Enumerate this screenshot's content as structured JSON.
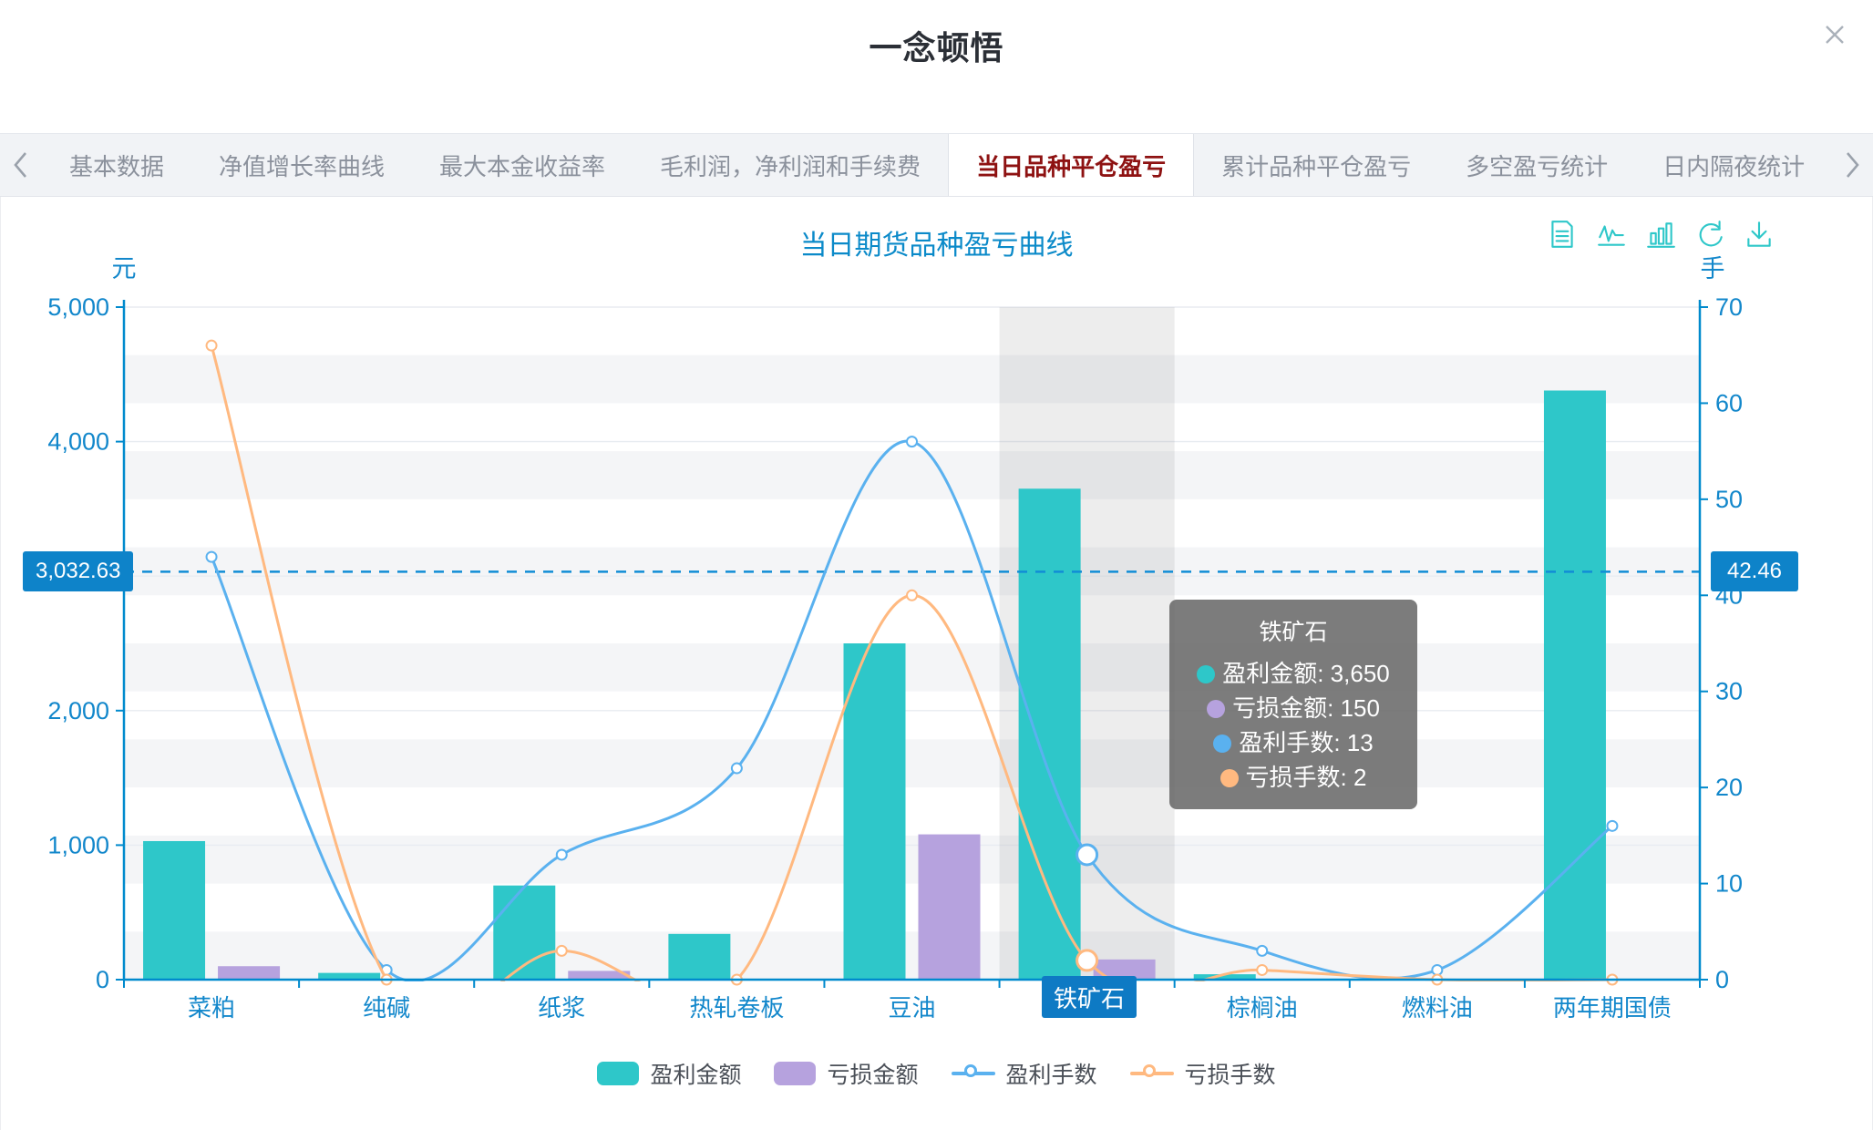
{
  "page": {
    "title": "一念顿悟"
  },
  "tabs": {
    "items": [
      {
        "label": "基本数据",
        "active": false
      },
      {
        "label": "净值增长率曲线",
        "active": false
      },
      {
        "label": "最大本金收益率",
        "active": false
      },
      {
        "label": "毛利润，净利润和手续费",
        "active": false
      },
      {
        "label": "当日品种平仓盈亏",
        "active": true
      },
      {
        "label": "累计品种平仓盈亏",
        "active": false
      },
      {
        "label": "多空盈亏统计",
        "active": false
      },
      {
        "label": "日内隔夜统计",
        "active": false
      }
    ]
  },
  "chart": {
    "title": "当日期货品种盈亏曲线",
    "toolbox_icons": [
      "data-view-icon",
      "line-chart-icon",
      "bar-chart-icon",
      "refresh-icon",
      "download-icon"
    ]
  },
  "chart_data": {
    "type": "bar+line",
    "categories": [
      "菜粕",
      "纯碱",
      "纸浆",
      "热轧卷板",
      "豆油",
      "铁矿石",
      "棕榈油",
      "燃料油",
      "两年期国债"
    ],
    "series": [
      {
        "name": "盈利金额",
        "type": "bar",
        "axis": "left",
        "color": "#2ec7c9",
        "values": [
          1030,
          50,
          700,
          340,
          2500,
          3650,
          40,
          10,
          4380
        ]
      },
      {
        "name": "亏损金额",
        "type": "bar",
        "axis": "left",
        "color": "#b6a2de",
        "values": [
          100,
          0,
          65,
          0,
          1080,
          150,
          0,
          0,
          0
        ]
      },
      {
        "name": "盈利手数",
        "type": "line",
        "axis": "right",
        "color": "#5ab1ef",
        "values": [
          44,
          1,
          13,
          22,
          56,
          13,
          3,
          1,
          16
        ]
      },
      {
        "name": "亏损手数",
        "type": "line",
        "axis": "right",
        "color": "#ffb980",
        "values": [
          66,
          0,
          3,
          0,
          40,
          2,
          1,
          0,
          0
        ]
      }
    ],
    "left_axis": {
      "name": "元",
      "min": 0,
      "max": 5000,
      "label_interval": 1000,
      "hidden_label": 3000
    },
    "right_axis": {
      "name": "手",
      "min": 0,
      "max": 70,
      "label_interval": 10,
      "band_interval": 5
    },
    "mark_line": {
      "left_label": "3,032.63",
      "right_label": "42.46",
      "left_value": 3032.63,
      "right_value": 42.46
    },
    "highlight_index": 5,
    "legend_position": "bottom",
    "grid": {
      "split_area": true
    }
  },
  "tooltip": {
    "title": "铁矿石",
    "rows": [
      {
        "label": "盈利金额",
        "value": "3,650",
        "color": "#2ec7c9"
      },
      {
        "label": "亏损金额",
        "value": "150",
        "color": "#b6a2de"
      },
      {
        "label": "盈利手数",
        "value": "13",
        "color": "#5ab1ef"
      },
      {
        "label": "亏损手数",
        "value": "2",
        "color": "#ffb980"
      }
    ]
  },
  "legend": [
    {
      "label": "盈利金额",
      "type": "bar",
      "color": "#2ec7c9"
    },
    {
      "label": "亏损金额",
      "type": "bar",
      "color": "#b6a2de"
    },
    {
      "label": "盈利手数",
      "type": "line",
      "color": "#5ab1ef"
    },
    {
      "label": "亏损手数",
      "type": "line",
      "color": "#ffb980"
    }
  ],
  "colors": {
    "axis": "#008acd",
    "badge": "#0e83c9",
    "active_tab_text": "#8e1212"
  }
}
